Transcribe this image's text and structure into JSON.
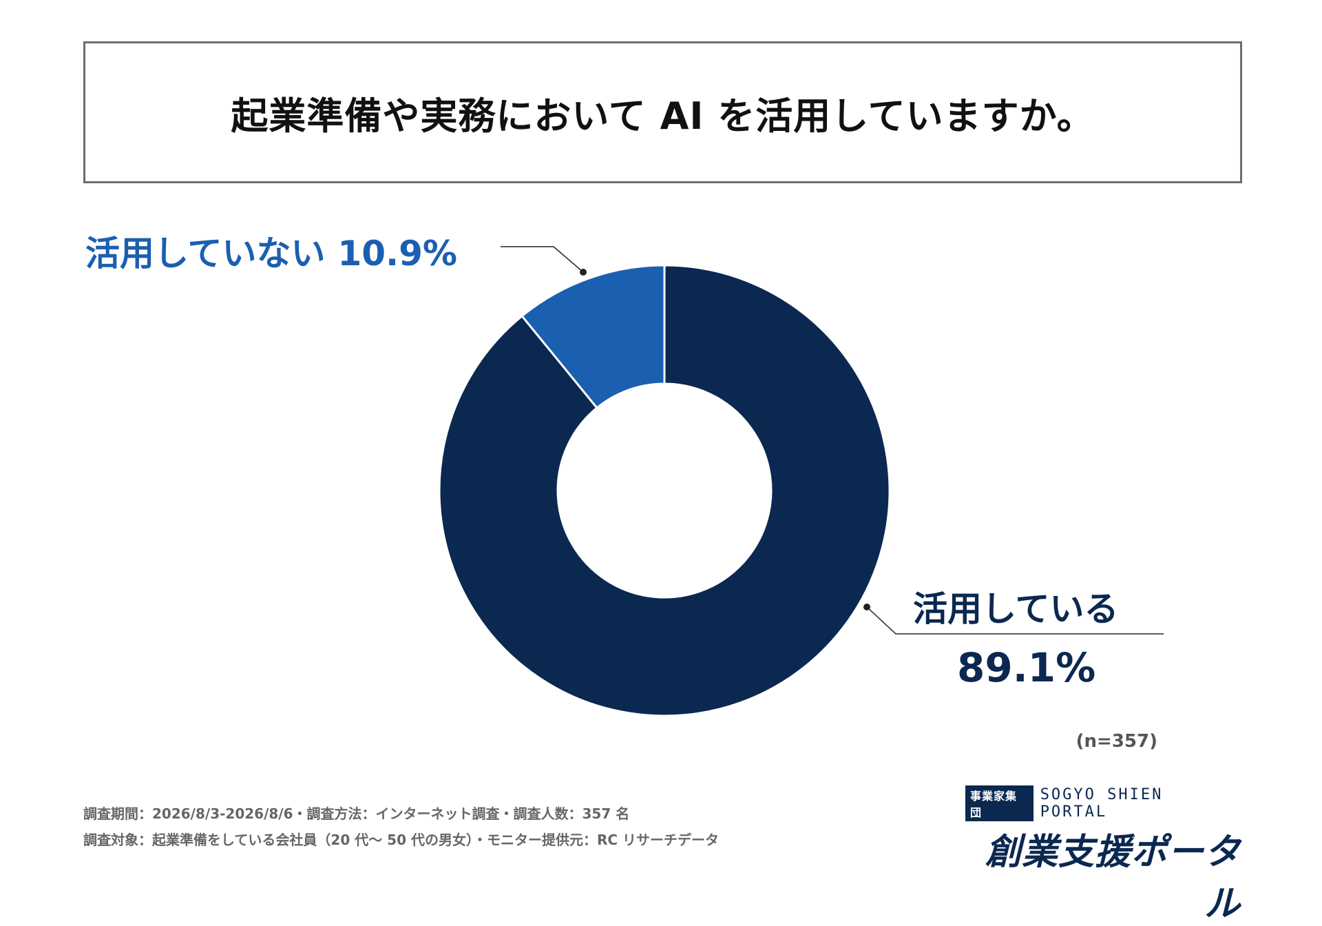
{
  "title": "起業準備や実務において AI を活用していますか。",
  "chart_data": {
    "type": "pie",
    "donut": true,
    "slices": [
      {
        "label": "活用している",
        "value": 89.1,
        "display": "89.1%",
        "color": "#0b2850"
      },
      {
        "label": "活用していない",
        "value": 10.9,
        "display": "10.9%",
        "color": "#1b5fb0"
      }
    ]
  },
  "sample_size": "(n=357)",
  "footnotes": {
    "line1": "調査期間：2026/8/3-2026/8/6・調査方法：インターネット調査・調査人数：357 名",
    "line2": "調査対象：起業準備をしている会社員（20 代〜 50 代の男女）・モニター提供元：RC リサーチデータ"
  },
  "brand": {
    "badge": "事業家集団",
    "english": "SOGYO SHIEN PORTAL",
    "name": "創業支援ポータル"
  }
}
